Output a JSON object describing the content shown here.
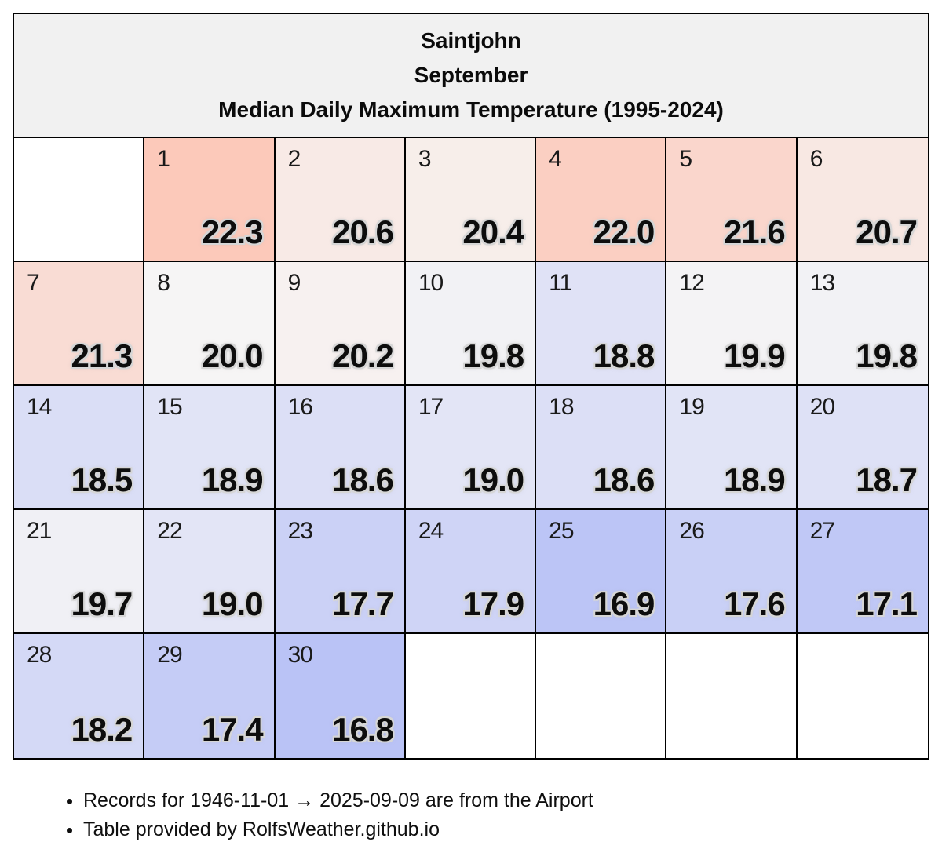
{
  "header": {
    "location": "Saintjohn",
    "month": "September",
    "metric": "Median Daily Maximum Temperature (1995-2024)"
  },
  "notes": [
    "Records for 1946-11-01 → 2025-09-09 are from the Airport",
    "Table provided by RolfsWeather.github.io"
  ],
  "colors": {
    "header_bg": "#f1f1f1",
    "border": "#000000",
    "empty_cell_bg": "#ffffff",
    "neutral_mid": "#f6f5f5",
    "warm_extreme": "#fcc9ba",
    "cool_extreme": "#bac3f6",
    "value_glow": "#d6d6d6"
  },
  "chart_data": {
    "type": "heatmap",
    "title": "Saintjohn — September — Median Daily Maximum Temperature (1995-2024)",
    "layout": {
      "columns": 7,
      "rows": 5,
      "leading_empty_cells": 1,
      "trailing_empty_cells": 4,
      "color_scale": "diverging red-warm / blue-cool centered near 20.0"
    },
    "days": [
      {
        "day": 1,
        "value": 22.3,
        "color": "#fcc9ba"
      },
      {
        "day": 2,
        "value": 20.6,
        "color": "#f8eae6"
      },
      {
        "day": 3,
        "value": 20.4,
        "color": "#f7eeea"
      },
      {
        "day": 4,
        "value": 22.0,
        "color": "#fbcfc2"
      },
      {
        "day": 5,
        "value": 21.6,
        "color": "#fad6cc"
      },
      {
        "day": 6,
        "value": 20.7,
        "color": "#f8e8e3"
      },
      {
        "day": 7,
        "value": 21.3,
        "color": "#f9dcd4"
      },
      {
        "day": 8,
        "value": 20.0,
        "color": "#f6f5f5"
      },
      {
        "day": 9,
        "value": 20.2,
        "color": "#f7f1f0"
      },
      {
        "day": 10,
        "value": 19.8,
        "color": "#f2f2f5"
      },
      {
        "day": 11,
        "value": 18.8,
        "color": "#e0e2f6"
      },
      {
        "day": 12,
        "value": 19.9,
        "color": "#f4f3f5"
      },
      {
        "day": 13,
        "value": 19.8,
        "color": "#f2f2f5"
      },
      {
        "day": 14,
        "value": 18.5,
        "color": "#dadef6"
      },
      {
        "day": 15,
        "value": 18.9,
        "color": "#e1e4f6"
      },
      {
        "day": 16,
        "value": 18.6,
        "color": "#dcdff6"
      },
      {
        "day": 17,
        "value": 19.0,
        "color": "#e3e5f6"
      },
      {
        "day": 18,
        "value": 18.6,
        "color": "#dcdff6"
      },
      {
        "day": 19,
        "value": 18.9,
        "color": "#e1e4f6"
      },
      {
        "day": 20,
        "value": 18.7,
        "color": "#dee1f6"
      },
      {
        "day": 21,
        "value": 19.7,
        "color": "#f0f0f5"
      },
      {
        "day": 22,
        "value": 19.0,
        "color": "#e3e5f6"
      },
      {
        "day": 23,
        "value": 17.7,
        "color": "#cbd1f6"
      },
      {
        "day": 24,
        "value": 17.9,
        "color": "#cfd4f6"
      },
      {
        "day": 25,
        "value": 16.9,
        "color": "#bcc5f6"
      },
      {
        "day": 26,
        "value": 17.6,
        "color": "#c9d0f6"
      },
      {
        "day": 27,
        "value": 17.1,
        "color": "#c0c8f6"
      },
      {
        "day": 28,
        "value": 18.2,
        "color": "#d4d9f6"
      },
      {
        "day": 29,
        "value": 17.4,
        "color": "#c5ccf6"
      },
      {
        "day": 30,
        "value": 16.8,
        "color": "#bac3f6"
      }
    ]
  }
}
